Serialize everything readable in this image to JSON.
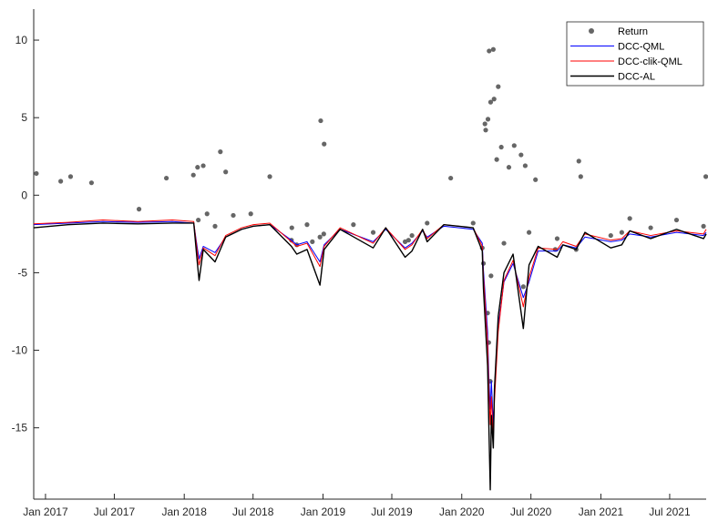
{
  "chart_data": {
    "type": "line",
    "title": "",
    "xlabel": "",
    "ylabel": "",
    "xlim": [
      "2016-12-01",
      "2021-10-05"
    ],
    "ylim": [
      -19.6,
      12
    ],
    "y_ticks": [
      10,
      5,
      0,
      -5,
      -10,
      -15
    ],
    "y_tick_labels": [
      "10",
      "5",
      "0",
      "-5",
      "-10",
      "-15"
    ],
    "x_ticks": [
      "2017-01-01",
      "2017-07-01",
      "2018-01-01",
      "2018-07-01",
      "2019-01-01",
      "2019-07-01",
      "2020-01-01",
      "2020-07-01",
      "2021-01-01",
      "2021-07-01"
    ],
    "x_tick_labels": [
      "Jan 2017",
      "Jul 2017",
      "Jan 2018",
      "Jul 2018",
      "Jan 2019",
      "Jul 2019",
      "Jan 2020",
      "Jul 2020",
      "Jan 2021",
      "Jul 2021"
    ],
    "grid": false,
    "legend_position": "top-right",
    "colors": {
      "return": "#666666",
      "dcc_qml": "#0000ff",
      "dcc_clik_qml": "#ff0000",
      "dcc_al": "#000000",
      "axis": "#262626"
    },
    "series": [
      {
        "name": "Return",
        "kind": "scatter",
        "points": [
          [
            "2016-12-08",
            1.4
          ],
          [
            "2017-02-10",
            0.9
          ],
          [
            "2017-03-08",
            1.2
          ],
          [
            "2017-05-02",
            0.8
          ],
          [
            "2017-09-04",
            -0.9
          ],
          [
            "2017-11-15",
            1.1
          ],
          [
            "2018-01-25",
            1.3
          ],
          [
            "2018-02-05",
            1.8
          ],
          [
            "2018-02-07",
            -1.6
          ],
          [
            "2018-02-20",
            1.9
          ],
          [
            "2018-03-02",
            -1.2
          ],
          [
            "2018-03-23",
            -2.0
          ],
          [
            "2018-04-06",
            2.8
          ],
          [
            "2018-04-20",
            1.5
          ],
          [
            "2018-05-10",
            -1.3
          ],
          [
            "2018-06-25",
            -1.2
          ],
          [
            "2018-08-14",
            1.2
          ],
          [
            "2018-10-10",
            -2.9
          ],
          [
            "2018-10-11",
            -2.1
          ],
          [
            "2018-10-24",
            -3.2
          ],
          [
            "2018-11-20",
            -1.9
          ],
          [
            "2018-12-04",
            -3.0
          ],
          [
            "2018-12-24",
            -2.7
          ],
          [
            "2018-12-26",
            4.8
          ],
          [
            "2019-01-03",
            -2.5
          ],
          [
            "2019-01-04",
            3.3
          ],
          [
            "2019-03-22",
            -1.9
          ],
          [
            "2019-05-13",
            -2.4
          ],
          [
            "2019-08-05",
            -3.0
          ],
          [
            "2019-08-14",
            -2.9
          ],
          [
            "2019-08-23",
            -2.6
          ],
          [
            "2019-10-02",
            -1.8
          ],
          [
            "2019-12-03",
            1.1
          ],
          [
            "2020-01-31",
            -1.8
          ],
          [
            "2020-02-24",
            -3.4
          ],
          [
            "2020-02-27",
            -4.4
          ],
          [
            "2020-03-02",
            4.6
          ],
          [
            "2020-03-04",
            4.2
          ],
          [
            "2020-03-09",
            -7.6
          ],
          [
            "2020-03-10",
            4.9
          ],
          [
            "2020-03-12",
            -9.5
          ],
          [
            "2020-03-13",
            9.3
          ],
          [
            "2020-03-16",
            -12.0
          ],
          [
            "2020-03-17",
            6.0
          ],
          [
            "2020-03-18",
            -5.2
          ],
          [
            "2020-03-24",
            9.4
          ],
          [
            "2020-03-26",
            6.2
          ],
          [
            "2020-04-02",
            2.3
          ],
          [
            "2020-04-06",
            7.0
          ],
          [
            "2020-04-14",
            3.1
          ],
          [
            "2020-04-21",
            -3.1
          ],
          [
            "2020-05-04",
            1.8
          ],
          [
            "2020-05-18",
            3.2
          ],
          [
            "2020-06-11",
            -5.9
          ],
          [
            "2020-06-05",
            2.6
          ],
          [
            "2020-06-16",
            1.9
          ],
          [
            "2020-06-26",
            -2.4
          ],
          [
            "2020-07-13",
            1.0
          ],
          [
            "2020-09-03",
            -3.5
          ],
          [
            "2020-09-08",
            -2.8
          ],
          [
            "2020-10-28",
            -3.5
          ],
          [
            "2020-11-09",
            1.2
          ],
          [
            "2020-11-04",
            2.2
          ],
          [
            "2021-01-27",
            -2.6
          ],
          [
            "2021-02-25",
            -2.4
          ],
          [
            "2021-03-18",
            -1.5
          ],
          [
            "2021-05-12",
            -2.1
          ],
          [
            "2021-07-19",
            -1.6
          ],
          [
            "2021-09-28",
            -2.0
          ],
          [
            "2021-10-04",
            1.2
          ]
        ]
      },
      {
        "name": "DCC-QML",
        "kind": "line",
        "points": [
          [
            "2016-12-01",
            -1.9
          ],
          [
            "2017-03-01",
            -1.8
          ],
          [
            "2017-06-01",
            -1.7
          ],
          [
            "2017-09-01",
            -1.75
          ],
          [
            "2017-12-01",
            -1.7
          ],
          [
            "2018-01-26",
            -1.8
          ],
          [
            "2018-02-05",
            -3.5
          ],
          [
            "2018-02-09",
            -4.1
          ],
          [
            "2018-02-20",
            -3.3
          ],
          [
            "2018-03-23",
            -3.7
          ],
          [
            "2018-04-20",
            -2.7
          ],
          [
            "2018-06-01",
            -2.2
          ],
          [
            "2018-07-02",
            -2.0
          ],
          [
            "2018-08-14",
            -1.9
          ],
          [
            "2018-10-10",
            -2.9
          ],
          [
            "2018-10-24",
            -3.2
          ],
          [
            "2018-11-20",
            -3.0
          ],
          [
            "2018-12-24",
            -4.3
          ],
          [
            "2019-01-04",
            -3.2
          ],
          [
            "2019-02-15",
            -2.2
          ],
          [
            "2019-05-13",
            -3.0
          ],
          [
            "2019-06-15",
            -2.2
          ],
          [
            "2019-08-05",
            -3.4
          ],
          [
            "2019-08-23",
            -3.1
          ],
          [
            "2019-09-20",
            -2.3
          ],
          [
            "2019-10-02",
            -2.7
          ],
          [
            "2019-11-15",
            -2.0
          ],
          [
            "2020-01-31",
            -2.2
          ],
          [
            "2020-02-24",
            -3.1
          ],
          [
            "2020-02-27",
            -4.8
          ],
          [
            "2020-03-09",
            -8.8
          ],
          [
            "2020-03-12",
            -11.5
          ],
          [
            "2020-03-16",
            -13.8
          ],
          [
            "2020-03-19",
            -12.0
          ],
          [
            "2020-03-24",
            -14.8
          ],
          [
            "2020-03-27",
            -12.5
          ],
          [
            "2020-04-06",
            -8.5
          ],
          [
            "2020-04-21",
            -5.6
          ],
          [
            "2020-05-15",
            -4.4
          ],
          [
            "2020-06-11",
            -6.6
          ],
          [
            "2020-06-26",
            -5.6
          ],
          [
            "2020-07-20",
            -3.6
          ],
          [
            "2020-09-08",
            -3.6
          ],
          [
            "2020-09-23",
            -3.2
          ],
          [
            "2020-10-28",
            -3.4
          ],
          [
            "2020-11-20",
            -2.7
          ],
          [
            "2021-01-27",
            -3.0
          ],
          [
            "2021-02-25",
            -2.9
          ],
          [
            "2021-03-18",
            -2.5
          ],
          [
            "2021-05-12",
            -2.7
          ],
          [
            "2021-07-19",
            -2.4
          ],
          [
            "2021-09-28",
            -2.6
          ],
          [
            "2021-10-05",
            -2.4
          ]
        ]
      },
      {
        "name": "DCC-clik-QML",
        "kind": "line",
        "points": [
          [
            "2016-12-01",
            -1.85
          ],
          [
            "2017-03-01",
            -1.75
          ],
          [
            "2017-06-01",
            -1.6
          ],
          [
            "2017-09-01",
            -1.7
          ],
          [
            "2017-12-01",
            -1.6
          ],
          [
            "2018-01-26",
            -1.7
          ],
          [
            "2018-02-05",
            -3.8
          ],
          [
            "2018-02-09",
            -4.5
          ],
          [
            "2018-02-20",
            -3.4
          ],
          [
            "2018-03-23",
            -3.9
          ],
          [
            "2018-04-20",
            -2.6
          ],
          [
            "2018-06-01",
            -2.1
          ],
          [
            "2018-07-02",
            -1.9
          ],
          [
            "2018-08-14",
            -1.8
          ],
          [
            "2018-10-10",
            -3.0
          ],
          [
            "2018-10-24",
            -3.3
          ],
          [
            "2018-11-20",
            -3.1
          ],
          [
            "2018-12-24",
            -4.6
          ],
          [
            "2019-01-04",
            -3.3
          ],
          [
            "2019-02-15",
            -2.1
          ],
          [
            "2019-05-13",
            -3.1
          ],
          [
            "2019-06-15",
            -2.1
          ],
          [
            "2019-08-05",
            -3.5
          ],
          [
            "2019-08-23",
            -3.2
          ],
          [
            "2019-09-20",
            -2.2
          ],
          [
            "2019-10-02",
            -2.8
          ],
          [
            "2019-11-15",
            -1.9
          ],
          [
            "2020-01-31",
            -2.1
          ],
          [
            "2020-02-24",
            -3.3
          ],
          [
            "2020-02-27",
            -5.2
          ],
          [
            "2020-03-09",
            -9.5
          ],
          [
            "2020-03-12",
            -12.3
          ],
          [
            "2020-03-16",
            -14.8
          ],
          [
            "2020-03-19",
            -13.0
          ],
          [
            "2020-03-24",
            -15.6
          ],
          [
            "2020-03-27",
            -13.3
          ],
          [
            "2020-04-06",
            -8.8
          ],
          [
            "2020-04-21",
            -5.5
          ],
          [
            "2020-05-15",
            -4.2
          ],
          [
            "2020-06-11",
            -7.2
          ],
          [
            "2020-06-26",
            -5.3
          ],
          [
            "2020-07-20",
            -3.4
          ],
          [
            "2020-09-08",
            -3.5
          ],
          [
            "2020-09-23",
            -3.0
          ],
          [
            "2020-10-28",
            -3.3
          ],
          [
            "2020-11-20",
            -2.5
          ],
          [
            "2021-01-27",
            -2.9
          ],
          [
            "2021-02-25",
            -2.8
          ],
          [
            "2021-03-18",
            -2.3
          ],
          [
            "2021-05-12",
            -2.6
          ],
          [
            "2021-07-19",
            -2.3
          ],
          [
            "2021-09-28",
            -2.5
          ],
          [
            "2021-10-05",
            -2.2
          ]
        ]
      },
      {
        "name": "DCC-AL",
        "kind": "line",
        "points": [
          [
            "2016-12-01",
            -2.1
          ],
          [
            "2017-03-01",
            -1.9
          ],
          [
            "2017-06-01",
            -1.8
          ],
          [
            "2017-09-01",
            -1.85
          ],
          [
            "2017-12-01",
            -1.8
          ],
          [
            "2018-01-26",
            -1.8
          ],
          [
            "2018-02-05",
            -4.5
          ],
          [
            "2018-02-09",
            -5.5
          ],
          [
            "2018-02-20",
            -3.5
          ],
          [
            "2018-03-23",
            -4.3
          ],
          [
            "2018-04-20",
            -2.7
          ],
          [
            "2018-06-01",
            -2.2
          ],
          [
            "2018-07-02",
            -2.0
          ],
          [
            "2018-08-14",
            -1.9
          ],
          [
            "2018-10-10",
            -3.3
          ],
          [
            "2018-10-24",
            -3.8
          ],
          [
            "2018-11-20",
            -3.5
          ],
          [
            "2018-12-24",
            -5.8
          ],
          [
            "2019-01-04",
            -3.5
          ],
          [
            "2019-02-15",
            -2.2
          ],
          [
            "2019-05-13",
            -3.4
          ],
          [
            "2019-06-15",
            -2.1
          ],
          [
            "2019-08-05",
            -4.0
          ],
          [
            "2019-08-23",
            -3.6
          ],
          [
            "2019-09-20",
            -2.2
          ],
          [
            "2019-10-02",
            -3.0
          ],
          [
            "2019-11-15",
            -1.9
          ],
          [
            "2020-01-31",
            -2.1
          ],
          [
            "2020-02-24",
            -3.6
          ],
          [
            "2020-02-27",
            -6.0
          ],
          [
            "2020-03-09",
            -11.0
          ],
          [
            "2020-03-12",
            -14.5
          ],
          [
            "2020-03-16",
            -19.0
          ],
          [
            "2020-03-19",
            -14.2
          ],
          [
            "2020-03-24",
            -16.3
          ],
          [
            "2020-03-27",
            -12.5
          ],
          [
            "2020-04-06",
            -7.8
          ],
          [
            "2020-04-21",
            -5.0
          ],
          [
            "2020-05-15",
            -3.8
          ],
          [
            "2020-06-11",
            -8.6
          ],
          [
            "2020-06-26",
            -4.5
          ],
          [
            "2020-07-20",
            -3.3
          ],
          [
            "2020-09-08",
            -4.0
          ],
          [
            "2020-09-23",
            -3.2
          ],
          [
            "2020-10-28",
            -3.5
          ],
          [
            "2020-11-20",
            -2.4
          ],
          [
            "2021-01-27",
            -3.4
          ],
          [
            "2021-02-25",
            -3.2
          ],
          [
            "2021-03-18",
            -2.3
          ],
          [
            "2021-05-12",
            -2.8
          ],
          [
            "2021-07-19",
            -2.2
          ],
          [
            "2021-09-28",
            -2.8
          ],
          [
            "2021-10-05",
            -2.5
          ]
        ]
      }
    ]
  }
}
